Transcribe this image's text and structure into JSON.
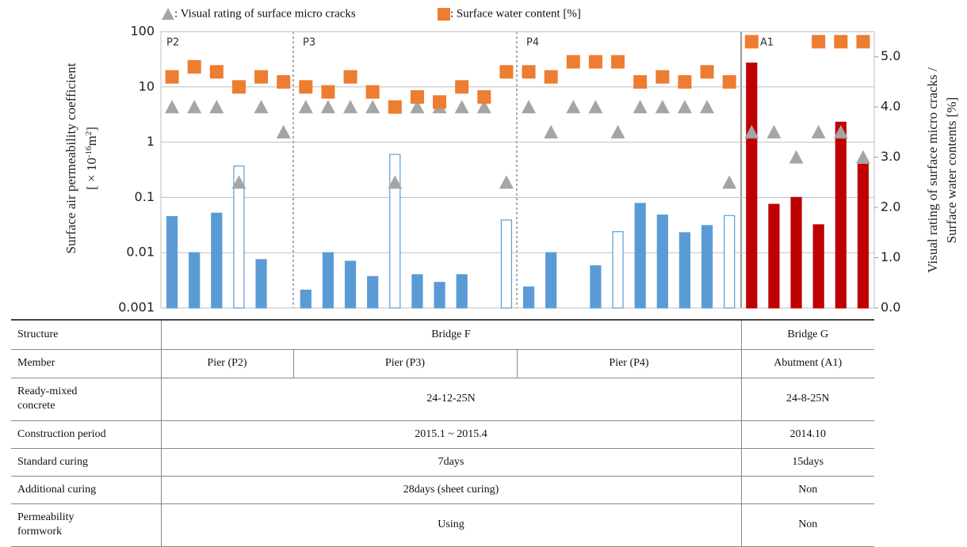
{
  "chart_data": {
    "type": "bar",
    "legend": "top",
    "grid": true,
    "log_y": true,
    "ylabel": "Surface air permeability coefficient",
    "ylabel_unit": {
      "open": "[ × 10",
      "exp": "-16",
      "unit": "m",
      "unit_exp": "2",
      "close": "]"
    },
    "y2label": [
      "Visual rating of surface micro cracks /",
      "Surface water contents [%]"
    ],
    "annotations": [
      "P2",
      "P3",
      "P4",
      "A1"
    ],
    "ylim": [
      0.001,
      100
    ],
    "yticks": [
      0.001,
      0.01,
      0.1,
      1,
      10,
      100
    ],
    "y2lim": [
      0,
      5.5
    ],
    "y2ticks": [
      {
        "value": 0,
        "label": "0.0"
      },
      {
        "value": 1,
        "label": "1.0"
      },
      {
        "value": 2,
        "label": "2.0"
      },
      {
        "value": 3,
        "label": "3.0"
      },
      {
        "value": 4,
        "label": "4.0"
      },
      {
        "value": 5,
        "label": "5.0"
      }
    ],
    "categories": [
      null,
      null,
      null,
      null,
      null,
      null,
      null,
      null,
      null,
      null,
      null,
      null,
      null,
      null,
      null,
      null,
      null,
      null,
      null,
      null,
      null,
      null,
      null,
      null,
      null,
      null,
      null,
      null,
      null,
      null,
      null,
      null
    ],
    "series": [
      {
        "type": "bar",
        "values": [
          0.045,
          0.01,
          0.052,
          0.37,
          0.0075,
          null,
          0.0021,
          0.01,
          0.007,
          0.0037,
          0.6,
          0.004,
          0.0029,
          0.004,
          null,
          0.039,
          0.0024,
          0.01,
          null,
          0.0058,
          0.024,
          0.078,
          0.048,
          0.023,
          0.031,
          0.047,
          27,
          0.075,
          0.1,
          0.032,
          2.3,
          0.4
        ],
        "fills": [
          "#5b9bd5",
          "#5b9bd5",
          "#5b9bd5",
          "#ffffff",
          "#5b9bd5",
          "#5b9bd5",
          "#5b9bd5",
          "#5b9bd5",
          "#5b9bd5",
          "#5b9bd5",
          "#ffffff",
          "#5b9bd5",
          "#5b9bd5",
          "#5b9bd5",
          "#5b9bd5",
          "#ffffff",
          "#5b9bd5",
          "#5b9bd5",
          "#5b9bd5",
          "#5b9bd5",
          "#ffffff",
          "#5b9bd5",
          "#5b9bd5",
          "#5b9bd5",
          "#5b9bd5",
          "#ffffff",
          "#c00000",
          "#c00000",
          "#c00000",
          "#c00000",
          "#c00000",
          "#c00000"
        ],
        "colors": [
          "#5b9bd5",
          "#5b9bd5",
          "#5b9bd5",
          "#5b9bd5",
          "#5b9bd5",
          "#5b9bd5",
          "#5b9bd5",
          "#5b9bd5",
          "#5b9bd5",
          "#5b9bd5",
          "#5b9bd5",
          "#5b9bd5",
          "#5b9bd5",
          "#5b9bd5",
          "#5b9bd5",
          "#5b9bd5",
          "#5b9bd5",
          "#5b9bd5",
          "#5b9bd5",
          "#5b9bd5",
          "#5b9bd5",
          "#5b9bd5",
          "#5b9bd5",
          "#5b9bd5",
          "#5b9bd5",
          "#5b9bd5",
          "#c00000",
          "#c00000",
          "#c00000",
          "#c00000",
          "#c00000",
          "#c00000"
        ]
      },
      {
        "type": "scatter",
        "marker": "triangle",
        "axis": "y2",
        "name": ": Visual rating of surface micro cracks",
        "color": "#a5a5a5",
        "values": [
          4,
          4,
          4,
          2.5,
          4,
          3.5,
          4,
          4,
          4,
          4,
          2.5,
          4,
          4,
          4,
          4,
          2.5,
          4,
          3.5,
          4,
          4,
          3.5,
          4,
          4,
          4,
          4,
          2.5,
          3.5,
          3.5,
          3,
          3.5,
          3.5,
          3
        ]
      },
      {
        "type": "scatter",
        "marker": "square",
        "axis": "y2",
        "name": ": Surface water content [%]",
        "color": "#ed7d31",
        "values": [
          4.6,
          4.8,
          4.7,
          4.4,
          4.6,
          4.5,
          4.4,
          4.3,
          4.6,
          4.3,
          4.0,
          4.2,
          4.1,
          4.4,
          4.2,
          4.7,
          4.7,
          4.6,
          4.9,
          4.9,
          4.9,
          4.5,
          4.6,
          4.5,
          4.7,
          4.5,
          5.3,
          null,
          null,
          5.3,
          5.3,
          5.3
        ]
      }
    ]
  },
  "table": {
    "rows": [
      {
        "label": "Structure",
        "cells": [
          "Bridge F",
          "Bridge G"
        ]
      },
      {
        "label": "Member",
        "cells": [
          "Pier (P2)",
          "Pier (P3)",
          "Pier (P4)",
          "Abutment (A1)"
        ]
      },
      {
        "label": "Ready-mixed\nconcrete",
        "cells": [
          "24-12-25N",
          "24-8-25N"
        ]
      },
      {
        "label": "Construction period",
        "cells": [
          "2015.1 ~ 2015.4",
          "2014.10"
        ]
      },
      {
        "label": "Standard curing",
        "cells": [
          "7days",
          "15days"
        ]
      },
      {
        "label": "Additional curing",
        "cells": [
          "28days (sheet curing)",
          "Non"
        ]
      },
      {
        "label": "Permeability\nformwork",
        "cells": [
          "Using",
          "Non"
        ]
      }
    ]
  }
}
